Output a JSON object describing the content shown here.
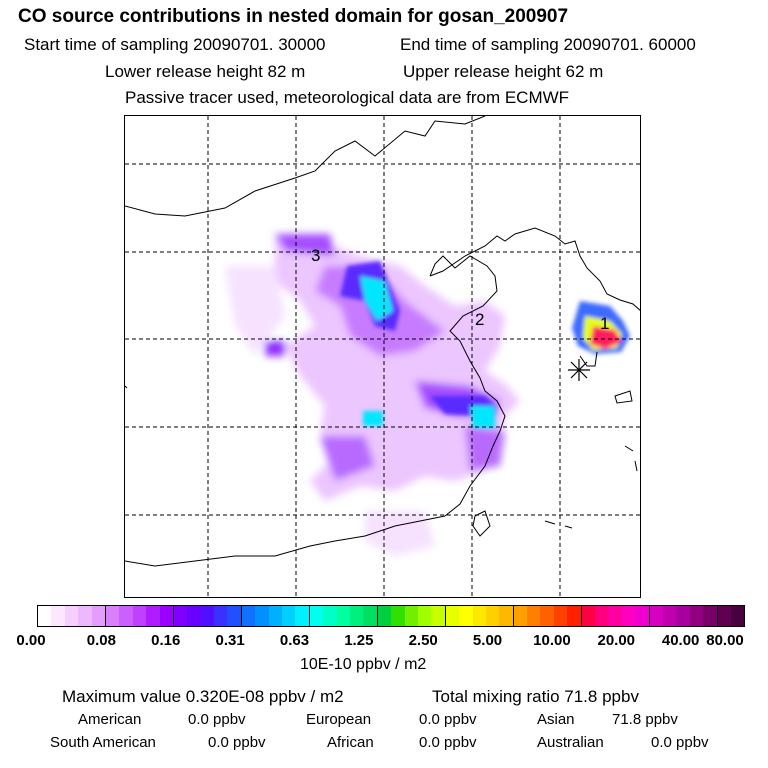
{
  "header": {
    "title": "CO  source contributions in nested domain for gosan_200907",
    "start_label": "Start time of sampling 20090701. 30000",
    "end_label": "End time of sampling 20090701. 60000",
    "lower_label": "Lower release height   82 m",
    "upper_label": "Upper release height   62 m",
    "tracer_label": "Passive tracer used, meteorological data are from ECMWF"
  },
  "map": {
    "region_labels": [
      "1",
      "2",
      "3"
    ],
    "receptor": "gosan (asterisk marker)",
    "colors": {
      "grid": "#000000",
      "coast": "#000000"
    }
  },
  "colorbar": {
    "ticks": [
      "0.00",
      "0.08",
      "0.16",
      "0.31",
      "0.63",
      "1.25",
      "2.50",
      "5.00",
      "10.00",
      "20.00",
      "40.00",
      "80.00"
    ],
    "units": "10E-10 ppbv / m2",
    "swatches": [
      "#ffffff",
      "#fbe8ff",
      "#f5d0ff",
      "#eeb8ff",
      "#e49cff",
      "#da80ff",
      "#cc60ff",
      "#bf40ff",
      "#ae1cff",
      "#9a00ff",
      "#8000ff",
      "#6a00ff",
      "#5010ff",
      "#3a30ff",
      "#2050ff",
      "#1070ff",
      "#0090ff",
      "#00b0ff",
      "#00d0ff",
      "#00f0ff",
      "#00ffee",
      "#00ffc8",
      "#00ffa0",
      "#00f080",
      "#00e060",
      "#00d040",
      "#30e000",
      "#70f000",
      "#a0ff00",
      "#c8ff00",
      "#e8ff00",
      "#ffff00",
      "#ffe800",
      "#ffd000",
      "#ffb800",
      "#ffa000",
      "#ff8000",
      "#ff6000",
      "#ff4000",
      "#ff2000",
      "#ff0040",
      "#ff0080",
      "#ff00a0",
      "#ff00c0",
      "#f000d0",
      "#d800c0",
      "#c000b0",
      "#a800a0",
      "#900080",
      "#780068",
      "#600050",
      "#480040"
    ]
  },
  "stats": {
    "maximum": "Maximum value  0.320E-08 ppbv / m2",
    "total": "Total mixing ratio       71.8 ppbv",
    "sources": [
      {
        "name": "American",
        "value": "0.0 ppbv"
      },
      {
        "name": "European",
        "value": "0.0 ppbv"
      },
      {
        "name": "Asian",
        "value": "71.8 ppbv"
      },
      {
        "name": "South American",
        "value": "0.0 ppbv"
      },
      {
        "name": "African",
        "value": "0.0 ppbv"
      },
      {
        "name": "Australian",
        "value": "0.0 ppbv"
      }
    ]
  }
}
